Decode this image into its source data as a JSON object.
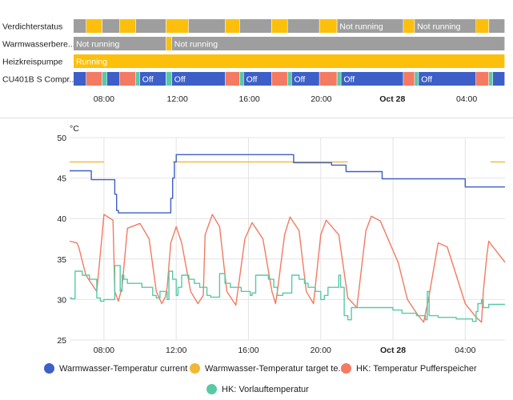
{
  "timeline": {
    "x_ticks": [
      "08:00",
      "12:00",
      "16:00",
      "20:00",
      "Oct 28",
      "04:00"
    ],
    "rows": [
      {
        "label": "Verdichterstatus",
        "segments": [
          {
            "start": 0.0,
            "end": 0.0296,
            "state": "off"
          },
          {
            "start": 0.0296,
            "end": 0.0667,
            "state": "on"
          },
          {
            "start": 0.0667,
            "end": 0.1074,
            "state": "off"
          },
          {
            "start": 0.1074,
            "end": 0.1444,
            "state": "on"
          },
          {
            "start": 0.1444,
            "end": 0.2148,
            "state": "off"
          },
          {
            "start": 0.2148,
            "end": 0.2667,
            "state": "on"
          },
          {
            "start": 0.2667,
            "end": 0.3519,
            "state": "off"
          },
          {
            "start": 0.3519,
            "end": 0.3852,
            "state": "on"
          },
          {
            "start": 0.3852,
            "end": 0.4593,
            "state": "off"
          },
          {
            "start": 0.4593,
            "end": 0.4963,
            "state": "on"
          },
          {
            "start": 0.4963,
            "end": 0.5704,
            "state": "off"
          },
          {
            "start": 0.5704,
            "end": 0.6111,
            "state": "on"
          },
          {
            "start": 0.6111,
            "end": 0.7648,
            "state": "off",
            "text": "Not running"
          },
          {
            "start": 0.7648,
            "end": 0.7907,
            "state": "on"
          },
          {
            "start": 0.7907,
            "end": 0.9333,
            "state": "off",
            "text": "Not running"
          },
          {
            "start": 0.9333,
            "end": 0.963,
            "state": "on"
          },
          {
            "start": 0.963,
            "end": 1.0,
            "state": "off"
          }
        ]
      },
      {
        "label": "Warmwasserbere...",
        "segments": [
          {
            "start": 0.0,
            "end": 0.2148,
            "state": "off",
            "text": "Not running"
          },
          {
            "start": 0.2148,
            "end": 0.2278,
            "state": "on"
          },
          {
            "start": 0.2278,
            "end": 1.0,
            "state": "off",
            "text": "Not running"
          }
        ]
      },
      {
        "label": "Heizkreispumpe",
        "segments": [
          {
            "start": 0.0,
            "end": 1.0,
            "state": "on",
            "text": "Running"
          }
        ]
      },
      {
        "label": "CU401B S Compr...",
        "segments": [
          {
            "start": 0.0,
            "end": 0.0296,
            "state": "blue"
          },
          {
            "start": 0.0296,
            "end": 0.0667,
            "state": "red"
          },
          {
            "start": 0.0667,
            "end": 0.0778,
            "state": "teal"
          },
          {
            "start": 0.0778,
            "end": 0.1074,
            "state": "blue"
          },
          {
            "start": 0.1074,
            "end": 0.1444,
            "state": "red"
          },
          {
            "start": 0.1444,
            "end": 0.1537,
            "state": "teal"
          },
          {
            "start": 0.1537,
            "end": 0.2148,
            "state": "blue",
            "text": "Off"
          },
          {
            "start": 0.2148,
            "end": 0.2278,
            "state": "teal"
          },
          {
            "start": 0.2278,
            "end": 0.3519,
            "state": "blue",
            "text": "Off"
          },
          {
            "start": 0.3519,
            "end": 0.3852,
            "state": "red"
          },
          {
            "start": 0.3852,
            "end": 0.3944,
            "state": "teal"
          },
          {
            "start": 0.3944,
            "end": 0.4593,
            "state": "blue",
            "text": "Off"
          },
          {
            "start": 0.4593,
            "end": 0.4963,
            "state": "red"
          },
          {
            "start": 0.4963,
            "end": 0.5056,
            "state": "teal"
          },
          {
            "start": 0.5056,
            "end": 0.5704,
            "state": "blue",
            "text": "Off"
          },
          {
            "start": 0.5704,
            "end": 0.6111,
            "state": "red"
          },
          {
            "start": 0.6111,
            "end": 0.6204,
            "state": "teal"
          },
          {
            "start": 0.6204,
            "end": 0.7648,
            "state": "blue",
            "text": "Off"
          },
          {
            "start": 0.7648,
            "end": 0.7907,
            "state": "red"
          },
          {
            "start": 0.7907,
            "end": 0.8,
            "state": "teal"
          },
          {
            "start": 0.8,
            "end": 0.9333,
            "state": "blue",
            "text": "Off"
          },
          {
            "start": 0.9333,
            "end": 0.963,
            "state": "red"
          },
          {
            "start": 0.963,
            "end": 0.9722,
            "state": "teal"
          },
          {
            "start": 0.9722,
            "end": 1.0,
            "state": "blue"
          }
        ]
      }
    ]
  },
  "colors": {
    "on": "#fcc00c",
    "off": "#9e9e9e",
    "blue": "#3d5fc7",
    "red": "#f47a62",
    "teal": "#58c9a7",
    "grid": "#e4e4e4"
  },
  "chart_data": {
    "type": "line",
    "ylabel": "°C",
    "ylim": [
      25,
      50
    ],
    "yticks": [
      25,
      30,
      35,
      40,
      45,
      50
    ],
    "xlim": [
      6.1,
      30.2
    ],
    "xticks": [
      {
        "hour": 8,
        "label": "08:00"
      },
      {
        "hour": 12,
        "label": "12:00"
      },
      {
        "hour": 16,
        "label": "16:00"
      },
      {
        "hour": 20,
        "label": "20:00"
      },
      {
        "hour": 24,
        "label": "Oct 28"
      },
      {
        "hour": 28,
        "label": "04:00"
      }
    ],
    "grid": true,
    "legend_position": "bottom",
    "series": [
      {
        "name": "Warmwasser-Temperatur current t...",
        "color": "#3d5fc7",
        "step": true,
        "x": [
          6.1,
          7.3,
          8.5,
          8.6,
          8.7,
          8.8,
          10.6,
          11.7,
          11.8,
          11.9,
          12.0,
          18.5,
          20.6,
          21.4,
          23.4,
          28.0,
          30.2
        ],
        "y": [
          45.9,
          44.8,
          44.8,
          43.0,
          41.0,
          40.7,
          40.7,
          42.5,
          45.0,
          47.0,
          47.9,
          46.9,
          46.6,
          45.8,
          44.9,
          43.9,
          43.9
        ]
      },
      {
        "name": "Warmwasser-Temperatur target te...",
        "color": "#f2b733",
        "step": true,
        "segments": [
          {
            "x": [
              6.1,
              8.0
            ],
            "y": [
              47.0,
              47.0
            ]
          },
          {
            "x": [
              11.8,
              21.5
            ],
            "y": [
              47.0,
              47.0
            ]
          },
          {
            "x": [
              29.4,
              30.2
            ],
            "y": [
              47.0,
              47.0
            ]
          }
        ]
      },
      {
        "name": "HK: Temperatur Pufferspeicher",
        "color": "#f47a62",
        "step": false,
        "x": [
          6.1,
          6.5,
          6.6,
          7.0,
          7.6,
          7.9,
          8.0,
          8.5,
          8.6,
          8.8,
          9.0,
          9.3,
          10.0,
          10.5,
          10.9,
          11.2,
          11.4,
          11.5,
          11.7,
          12.0,
          12.3,
          12.8,
          13.2,
          13.5,
          13.6,
          14.0,
          14.4,
          14.8,
          15.3,
          15.8,
          16.2,
          16.8,
          17.3,
          17.5,
          17.6,
          18.0,
          18.3,
          18.8,
          19.2,
          19.6,
          20.0,
          20.3,
          21.0,
          21.5,
          22.0,
          22.5,
          22.8,
          23.3,
          24.3,
          24.8,
          25.1,
          25.4,
          25.7,
          26.0,
          26.5,
          27.0,
          27.5,
          28.0,
          28.6,
          28.9,
          29.0,
          29.2,
          29.3,
          29.5,
          30.2
        ],
        "y": [
          37.2,
          37.0,
          36.5,
          33.0,
          31.0,
          38.0,
          40.5,
          39.8,
          31.0,
          29.8,
          31.5,
          38.8,
          39.4,
          37.5,
          31.0,
          29.5,
          30.3,
          31.5,
          37.0,
          39.0,
          37.0,
          31.0,
          29.5,
          30.5,
          38.0,
          40.5,
          39.0,
          31.0,
          29.3,
          37.5,
          39.5,
          37.5,
          31.0,
          29.5,
          31.0,
          38.0,
          40.2,
          38.5,
          31.0,
          29.5,
          38.0,
          39.8,
          38.0,
          30.2,
          29.0,
          38.5,
          40.3,
          39.7,
          34.5,
          30.0,
          29.0,
          28.0,
          27.2,
          30.5,
          37.0,
          36.5,
          33.0,
          29.5,
          27.8,
          27.2,
          31.0,
          35.5,
          37.2,
          36.6,
          34.6
        ]
      },
      {
        "name": "HK: Vorlauftemperatur",
        "color": "#58c9a7",
        "step": true,
        "x": [
          6.1,
          6.2,
          6.4,
          6.8,
          7.2,
          7.6,
          7.8,
          8.0,
          8.6,
          8.9,
          9.0,
          9.1,
          9.3,
          10.1,
          10.7,
          10.9,
          11.1,
          11.5,
          11.6,
          11.8,
          12.0,
          12.1,
          12.3,
          12.7,
          13.0,
          13.3,
          13.7,
          13.9,
          14.4,
          14.7,
          15.0,
          15.6,
          16.1,
          16.2,
          16.4,
          17.1,
          17.4,
          17.6,
          17.9,
          18.4,
          18.8,
          19.1,
          19.3,
          19.7,
          20.0,
          20.2,
          20.4,
          20.7,
          21.0,
          21.1,
          21.3,
          21.5,
          21.7,
          22.5,
          24.0,
          24.5,
          25.3,
          25.8,
          25.9,
          26.0,
          26.5,
          27.5,
          28.4,
          28.6,
          28.7,
          28.9,
          29.0,
          29.3,
          30.2
        ],
        "y": [
          30.2,
          30.1,
          33.5,
          33.0,
          32.5,
          30.2,
          29.8,
          30.0,
          34.2,
          31.0,
          33.0,
          32.5,
          32.0,
          31.5,
          30.5,
          30.2,
          31.0,
          30.0,
          33.5,
          32.5,
          30.5,
          31.5,
          33.0,
          32.5,
          32.0,
          31.5,
          30.5,
          30.3,
          33.2,
          32.0,
          31.5,
          31.0,
          30.5,
          30.8,
          33.0,
          32.5,
          31.5,
          30.5,
          30.8,
          33.0,
          32.5,
          32.0,
          31.5,
          31.0,
          30.0,
          30.5,
          31.5,
          31.5,
          33.0,
          31.5,
          28.0,
          27.5,
          29.0,
          29.0,
          28.7,
          28.3,
          28.0,
          27.5,
          31.0,
          28.0,
          27.8,
          27.6,
          27.3,
          28.5,
          29.5,
          30.0,
          29.0,
          29.4,
          29.4
        ]
      }
    ]
  }
}
